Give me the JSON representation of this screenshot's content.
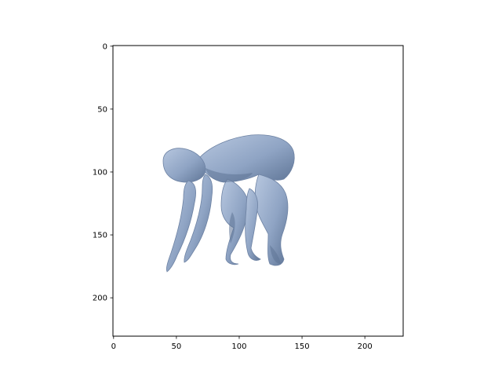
{
  "chart_data": {
    "type": "image",
    "title": "",
    "xlabel": "",
    "ylabel": "",
    "xlim": [
      -0.5,
      230.5
    ],
    "ylim": [
      230.5,
      -0.5
    ],
    "y_inverted": true,
    "x_ticks": [
      0,
      50,
      100,
      150,
      200
    ],
    "x_tick_labels": [
      "0",
      "50",
      "100",
      "150",
      "200"
    ],
    "y_ticks": [
      0,
      50,
      100,
      150,
      200
    ],
    "y_tick_labels": [
      "0",
      "50",
      "100",
      "150",
      "200"
    ],
    "grid": false,
    "legend": "none",
    "image_content": "rendered 3D human figure in a crouched, bent-over pose reaching toward the ground",
    "figure_color": "#8fa4c4",
    "figure_shadow_color": "#5f7596"
  }
}
